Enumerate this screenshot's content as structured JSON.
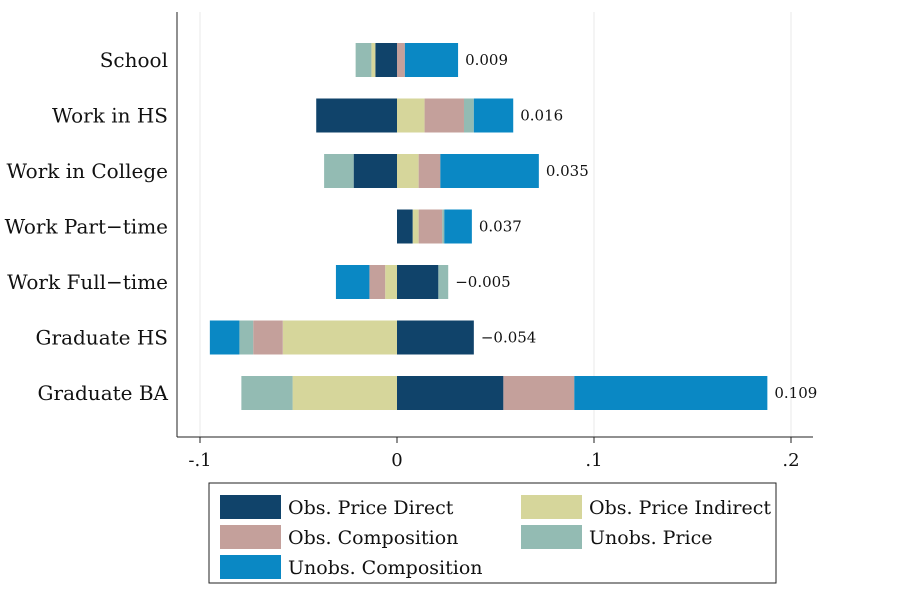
{
  "chart_data": {
    "type": "bar",
    "orientation": "horizontal",
    "stacked": true,
    "title": "",
    "xlabel": "",
    "ylabel": "",
    "xlim": [
      -0.11,
      0.21
    ],
    "x_ticks": [
      -0.1,
      0,
      0.1,
      0.2
    ],
    "x_tick_labels": [
      "-.1",
      "0",
      ".1",
      ".2"
    ],
    "grid": "vertical",
    "legend_position": "bottom",
    "categories": [
      "School",
      "Work in HS",
      "Work in College",
      "Work Part−time",
      "Work Full−time",
      "Graduate HS",
      "Graduate BA"
    ],
    "totals": [
      0.009,
      0.016,
      0.035,
      0.037,
      -0.005,
      -0.054,
      0.109
    ],
    "total_labels": [
      "0.009",
      "0.016",
      "0.035",
      "0.037",
      "−0.005",
      "−0.054",
      "0.109"
    ],
    "series": [
      {
        "name": "Obs. Price Direct",
        "color": "#10436a",
        "values": [
          -0.011,
          -0.041,
          -0.022,
          0.008,
          0.021,
          0.039,
          0.054
        ]
      },
      {
        "name": "Obs. Price Indirect",
        "color": "#d6d69b",
        "values": [
          -0.002,
          0.014,
          0.011,
          0.003,
          -0.006,
          -0.058,
          -0.053
        ]
      },
      {
        "name": "Obs. Composition",
        "color": "#c4a09b",
        "values": [
          0.004,
          0.02,
          0.011,
          0.012,
          -0.008,
          -0.015,
          0.036
        ]
      },
      {
        "name": "Unobs. Price",
        "color": "#93bbb3",
        "values": [
          -0.008,
          0.005,
          -0.015,
          0.001,
          0.005,
          -0.007,
          -0.026
        ]
      },
      {
        "name": "Unobs. Composition",
        "color": "#0a88c4",
        "values": [
          0.027,
          0.02,
          0.05,
          0.014,
          -0.017,
          -0.015,
          0.098
        ]
      }
    ]
  }
}
